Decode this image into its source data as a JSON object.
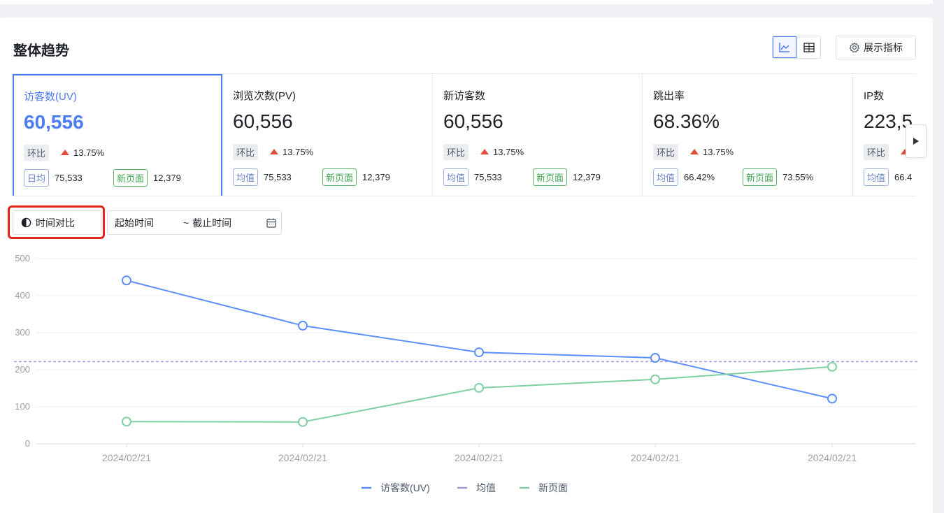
{
  "section": {
    "title": "整体趋势",
    "metrics_button_label": "展示指标"
  },
  "kpis": [
    {
      "label": "访客数(UV)",
      "value": "60,556",
      "change_tag": "环比",
      "change": "13.75%",
      "avg_tag": "日均",
      "avg_value": "75,533",
      "new_tag": "新页面",
      "new_value": "12,379",
      "selected": true
    },
    {
      "label": "浏览次数(PV)",
      "value": "60,556",
      "change_tag": "环比",
      "change": "13.75%",
      "avg_tag": "均值",
      "avg_value": "75,533",
      "new_tag": "新页面",
      "new_value": "12,379"
    },
    {
      "label": "新访客数",
      "value": "60,556",
      "change_tag": "环比",
      "change": "13.75%",
      "avg_tag": "均值",
      "avg_value": "75,533",
      "new_tag": "新页面",
      "new_value": "12,379"
    },
    {
      "label": "跳出率",
      "value": "68.36%",
      "change_tag": "环比",
      "change": "13.75%",
      "avg_tag": "均值",
      "avg_value": "66.42%",
      "new_tag": "新页面",
      "new_value": "73.55%"
    },
    {
      "label": "IP数",
      "value": "223,5",
      "change_tag": "环比",
      "change": "",
      "avg_tag": "均值",
      "avg_value": "66.4"
    }
  ],
  "filters": {
    "compare_label": "时间对比",
    "start_placeholder": "起始时间",
    "separator": "~",
    "end_placeholder": "截止时间"
  },
  "colors": {
    "accent": "#4c7cf3",
    "uv_line": "#5b8ff9",
    "new_page_line": "#7fcfa3",
    "avg_line": "#a397d6",
    "up": "#e34d3b",
    "highlight": "#e2261b"
  },
  "chart_data": {
    "type": "line",
    "categories": [
      "2024/02/21",
      "2024/02/21",
      "2024/02/21",
      "2024/02/21",
      "2024/02/21"
    ],
    "ylim": [
      0,
      500
    ],
    "yticks": [
      "0",
      "100",
      "200",
      "300",
      "400",
      "500"
    ],
    "series": [
      {
        "name": "访客数(UV)",
        "values": [
          441,
          319,
          247,
          232,
          122
        ]
      },
      {
        "name": "新页面",
        "values": [
          60,
          59,
          151,
          174,
          208
        ]
      }
    ],
    "average": {
      "name": "均值",
      "value": 222
    },
    "legend": [
      "访客数(UV)",
      "均值",
      "新页面"
    ],
    "legend_position": "bottom",
    "grid": true
  }
}
